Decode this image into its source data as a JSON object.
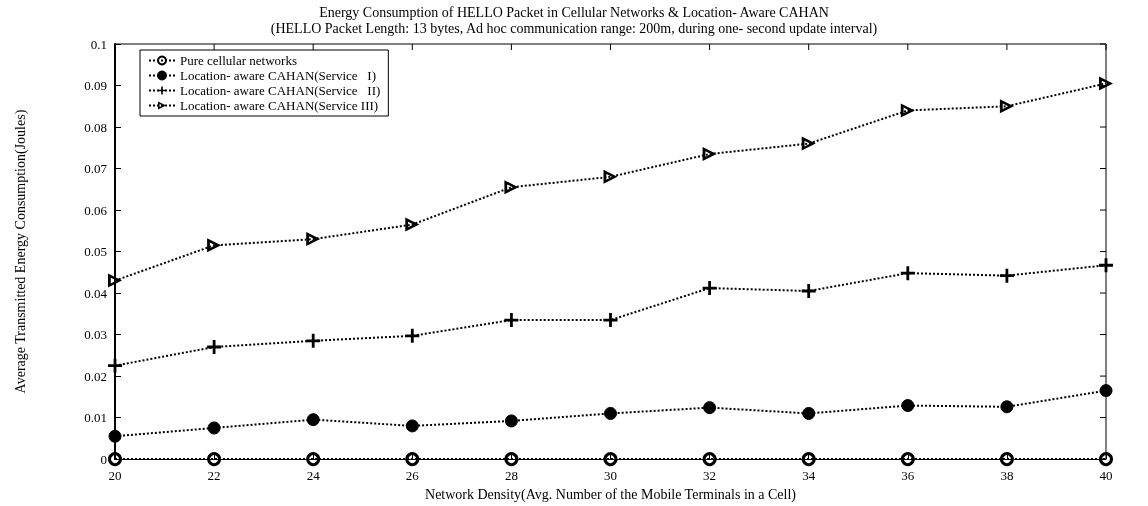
{
  "chart_data": {
    "type": "line",
    "title": "Energy Consumption of HELLO Packet in Cellular Networks & Location- Aware CAHAN",
    "subtitle": "(HELLO Packet Length: 13 bytes, Ad hoc communication range: 200m, during one- second update interval)",
    "xlabel": "Network Density(Avg. Number of the Mobile Terminals in a Cell)",
    "ylabel": "Average Transmitted Energy Consumption(Joules)",
    "x": [
      20,
      22,
      24,
      26,
      28,
      30,
      32,
      34,
      36,
      38,
      40
    ],
    "series": [
      {
        "name": "Pure cellular networks",
        "color": "#000000",
        "marker": "circle",
        "values": [
          0,
          0,
          0,
          0,
          0,
          0,
          0,
          0,
          0,
          0,
          0
        ]
      },
      {
        "name": "Location- aware CAHAN(Service   I)",
        "color": "#000000",
        "marker": "filled-circle",
        "values": [
          0.0055,
          0.0075,
          0.0095,
          0.008,
          0.0092,
          0.011,
          0.0124,
          0.011,
          0.0129,
          0.0126,
          0.0165
        ]
      },
      {
        "name": "Location- aware CAHAN(Service   II)",
        "color": "#000000",
        "marker": "cross",
        "values": [
          0.0225,
          0.027,
          0.0285,
          0.0297,
          0.0335,
          0.0335,
          0.0412,
          0.0405,
          0.0448,
          0.0442,
          0.0467
        ]
      },
      {
        "name": "Location- aware CAHAN(Service III)",
        "color": "#000000",
        "marker": "triangle",
        "values": [
          0.043,
          0.0515,
          0.053,
          0.0565,
          0.0655,
          0.068,
          0.0735,
          0.076,
          0.084,
          0.085,
          0.0905
        ]
      }
    ],
    "xlim": [
      20,
      40
    ],
    "xticks": [
      20,
      22,
      24,
      26,
      28,
      30,
      32,
      34,
      36,
      38,
      40
    ],
    "ylim": [
      0,
      0.1
    ],
    "yticks": [
      0,
      0.01,
      0.02,
      0.03,
      0.04,
      0.05,
      0.06,
      0.07,
      0.08,
      0.09,
      0.1
    ],
    "grid": false,
    "legend": "top left",
    "line_style": "dotted"
  }
}
